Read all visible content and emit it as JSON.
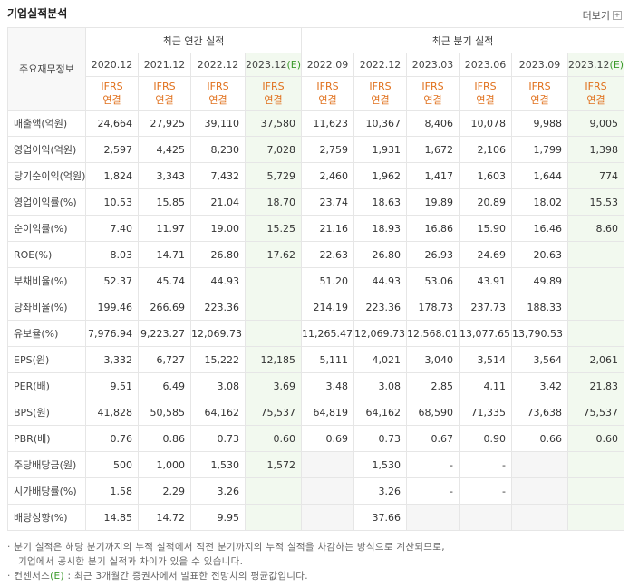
{
  "header": {
    "title": "기업실적분석",
    "more": "더보기"
  },
  "table": {
    "corner": "주요재무정보",
    "annual_group": "최근 연간 실적",
    "quarterly_group": "최근 분기 실적",
    "annual_columns": [
      {
        "period": "2020.12",
        "standard": "IFRS",
        "scope": "연결"
      },
      {
        "period": "2021.12",
        "standard": "IFRS",
        "scope": "연결"
      },
      {
        "period": "2022.12",
        "standard": "IFRS",
        "scope": "연결"
      },
      {
        "period": "2023.12",
        "estimate": "(E)",
        "standard": "IFRS",
        "scope": "연결"
      }
    ],
    "quarterly_columns": [
      {
        "period": "2022.09",
        "standard": "IFRS",
        "scope": "연결"
      },
      {
        "period": "2022.12",
        "standard": "IFRS",
        "scope": "연결"
      },
      {
        "period": "2023.03",
        "standard": "IFRS",
        "scope": "연결"
      },
      {
        "period": "2023.06",
        "standard": "IFRS",
        "scope": "연결"
      },
      {
        "period": "2023.09",
        "standard": "IFRS",
        "scope": "연결"
      },
      {
        "period": "2023.12",
        "estimate": "(E)",
        "standard": "IFRS",
        "scope": "연결"
      }
    ],
    "sections": [
      {
        "rows": [
          {
            "label": "매출액(억원)",
            "annual": [
              "24,664",
              "27,925",
              "39,110",
              "37,580"
            ],
            "quarterly": [
              "11,623",
              "10,367",
              "8,406",
              "10,078",
              "9,988",
              "9,005"
            ]
          },
          {
            "label": "영업이익(억원)",
            "annual": [
              "2,597",
              "4,425",
              "8,230",
              "7,028"
            ],
            "quarterly": [
              "2,759",
              "1,931",
              "1,672",
              "2,106",
              "1,799",
              "1,398"
            ]
          },
          {
            "label": "당기순이익(억원)",
            "annual": [
              "1,824",
              "3,343",
              "7,432",
              "5,729"
            ],
            "quarterly": [
              "2,460",
              "1,962",
              "1,417",
              "1,603",
              "1,644",
              "774"
            ]
          },
          {
            "label": "영업이익률(%)",
            "annual": [
              "10.53",
              "15.85",
              "21.04",
              "18.70"
            ],
            "quarterly": [
              "23.74",
              "18.63",
              "19.89",
              "20.89",
              "18.02",
              "15.53"
            ]
          },
          {
            "label": "순이익률(%)",
            "annual": [
              "7.40",
              "11.97",
              "19.00",
              "15.25"
            ],
            "quarterly": [
              "21.16",
              "18.93",
              "16.86",
              "15.90",
              "16.46",
              "8.60"
            ]
          },
          {
            "label": "ROE(%)",
            "annual": [
              "8.03",
              "14.71",
              "26.80",
              "17.62"
            ],
            "quarterly": [
              "22.63",
              "26.80",
              "26.93",
              "24.69",
              "20.63",
              null
            ]
          }
        ]
      },
      {
        "rows": [
          {
            "label": "부채비율(%)",
            "annual": [
              "52.37",
              "45.74",
              "44.93",
              null
            ],
            "quarterly": [
              "51.20",
              "44.93",
              "53.06",
              "43.91",
              "49.89",
              null
            ]
          },
          {
            "label": "당좌비율(%)",
            "annual": [
              "199.46",
              "266.69",
              "223.36",
              null
            ],
            "quarterly": [
              "214.19",
              "223.36",
              "178.73",
              "237.73",
              "188.33",
              null
            ]
          },
          {
            "label": "유보율(%)",
            "annual": [
              "7,976.94",
              "9,223.27",
              "12,069.73",
              null
            ],
            "quarterly": [
              "11,265.47",
              "12,069.73",
              "12,568.01",
              "13,077.65",
              "13,790.53",
              null
            ]
          }
        ]
      },
      {
        "rows": [
          {
            "label": "EPS(원)",
            "annual": [
              "3,332",
              "6,727",
              "15,222",
              "12,185"
            ],
            "quarterly": [
              "5,111",
              "4,021",
              "3,040",
              "3,514",
              "3,564",
              "2,061"
            ]
          },
          {
            "label": "PER(배)",
            "annual": [
              "9.51",
              "6.49",
              "3.08",
              "3.69"
            ],
            "quarterly": [
              "3.48",
              "3.08",
              "2.85",
              "4.11",
              "3.42",
              "21.83"
            ]
          },
          {
            "label": "BPS(원)",
            "annual": [
              "41,828",
              "50,585",
              "64,162",
              "75,537"
            ],
            "quarterly": [
              "64,819",
              "64,162",
              "68,590",
              "71,335",
              "73,638",
              "75,537"
            ]
          },
          {
            "label": "PBR(배)",
            "annual": [
              "0.76",
              "0.86",
              "0.73",
              "0.60"
            ],
            "quarterly": [
              "0.69",
              "0.73",
              "0.67",
              "0.90",
              "0.66",
              "0.60"
            ]
          }
        ]
      },
      {
        "rows": [
          {
            "label": "주당배당금(원)",
            "annual": [
              "500",
              "1,000",
              "1,530",
              "1,572"
            ],
            "quarterly": [
              null,
              "1,530",
              "-",
              "-",
              null,
              null
            ]
          },
          {
            "label": "시가배당률(%)",
            "annual": [
              "1.58",
              "2.29",
              "3.26",
              null
            ],
            "quarterly": [
              null,
              "3.26",
              "-",
              "-",
              null,
              null
            ]
          },
          {
            "label": "배당성향(%)",
            "annual": [
              "14.85",
              "14.72",
              "9.95",
              null
            ],
            "quarterly": [
              null,
              "37.66",
              null,
              null,
              null,
              null
            ]
          }
        ]
      }
    ]
  },
  "notes": {
    "quarterly": [
      "분기 실적은 해당 분기까지의 누적 실적에서 직전 분기까지의 누적 실적을 차감하는 방식으로 계산되므로,",
      "기업에서 공시한 분기 실적과 차이가 있을 수 있습니다."
    ],
    "consensus": {
      "term": "컨센서스",
      "mark": "(E)",
      "text": " : 최근 3개월간 증권사에서 발표한 전망치의 평균값입니다."
    }
  }
}
